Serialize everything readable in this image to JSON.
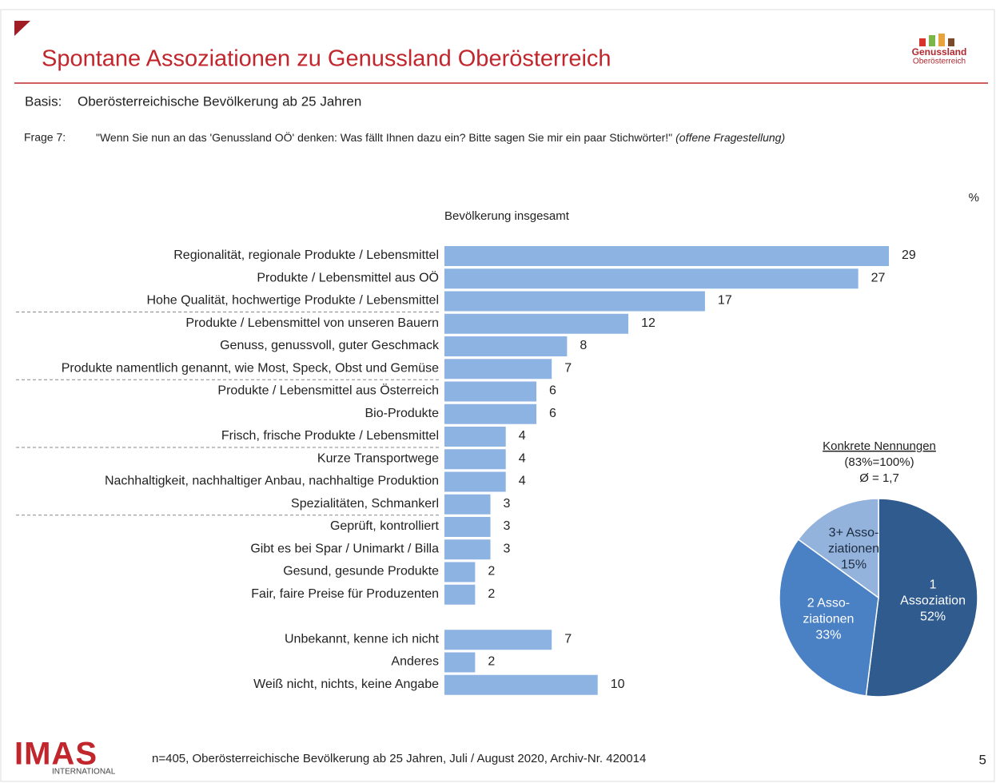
{
  "slide": {
    "title": "Spontane Assoziationen zu Genussland Oberösterreich",
    "logo": [
      "Genussland",
      "Oberösterreich"
    ],
    "basis_label": "Basis:",
    "basis": "Oberösterreichische Bevölkerung ab 25 Jahren",
    "question_label": "Frage 7:",
    "question": "\"Wenn Sie nun an das 'Genussland OÖ' denken: Was fällt Ihnen dazu ein? Bitte sagen Sie mir ein paar Stichwörter!\"",
    "question_note": "(offene Fragestellung)",
    "footer_logo": [
      "IMAS",
      "INTERNATIONAL"
    ],
    "footnote": "n=405, Oberösterreichische Bevölkerung ab 25 Jahren, Juli / August 2020, Archiv-Nr. 420014",
    "page": "5"
  },
  "chart_data": [
    {
      "type": "hbar",
      "title": "Bevölkerung insgesamt",
      "unit": "%",
      "color": "#8db3e2",
      "categories": [
        "Regionalität, regionale Produkte / Lebensmittel",
        "Produkte / Lebensmittel aus OÖ",
        "Hohe Qualität, hochwertige Produkte / Lebensmittel",
        "Produkte / Lebensmittel von unseren Bauern",
        "Genuss, genussvoll, guter Geschmack",
        "Produkte namentlich genannt, wie Most, Speck, Obst und Gemüse",
        "Produkte / Lebensmittel aus Österreich",
        "Bio-Produkte",
        "Frisch, frische Produkte / Lebensmittel",
        "Kurze Transportwege",
        "Nachhaltigkeit, nachhaltiger Anbau, nachhaltige Produktion",
        "Spezialitäten, Schmankerl",
        "Geprüft, kontrolliert",
        "Gibt es bei Spar / Unimarkt / Billa",
        "Gesund, gesunde Produkte",
        "Fair, faire Preise für Produzenten",
        "Unbekannt, kenne ich nicht",
        "Anderes",
        "Weiß nicht, nichts, keine Angabe"
      ],
      "values": [
        29,
        27,
        17,
        12,
        8,
        7,
        6,
        6,
        4,
        4,
        4,
        3,
        3,
        3,
        2,
        2,
        7,
        2,
        10
      ]
    },
    {
      "type": "pie",
      "title": "Konkrete Nennungen",
      "subtitle": [
        "(83%=100%)",
        "Ø = 1,7"
      ],
      "categories": [
        [
          "1",
          "Assoziation"
        ],
        [
          "2 Asso-",
          "ziationen"
        ],
        [
          "3+ Asso-",
          "ziationen"
        ]
      ],
      "values": [
        52,
        33,
        15
      ],
      "value_labels": [
        "52%",
        "33%",
        "15%"
      ],
      "colors": [
        "#2f5b8e",
        "#4a80c4",
        "#93b3dc"
      ]
    }
  ]
}
